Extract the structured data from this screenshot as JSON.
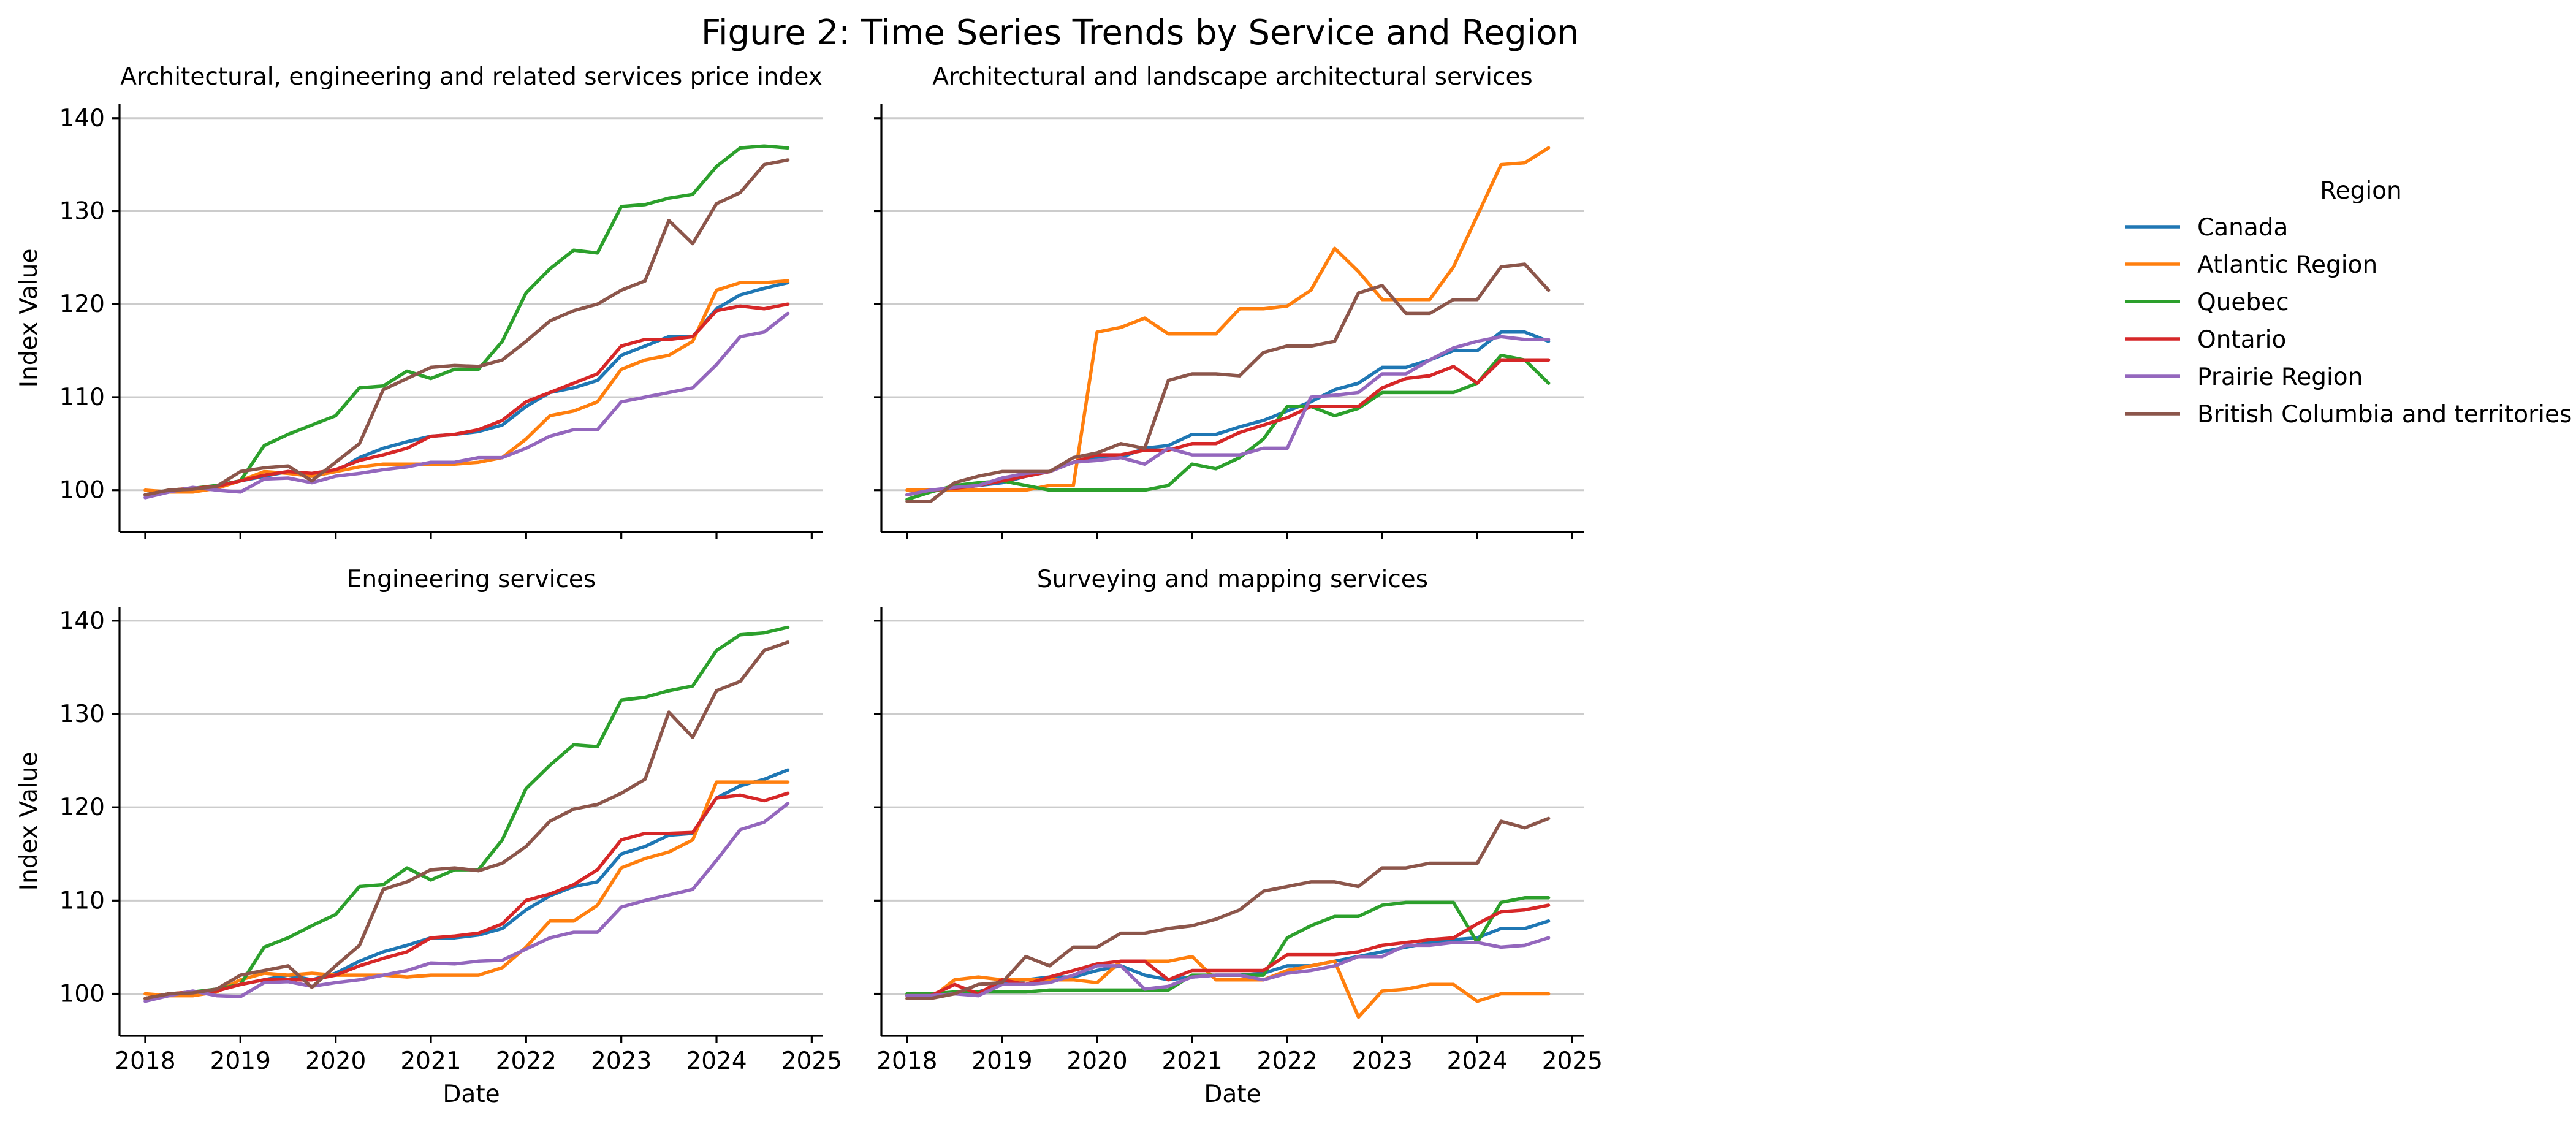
{
  "figure": {
    "title": "Figure 2: Time Series Trends by Service and Region"
  },
  "legend": {
    "title": "Region",
    "entries": [
      {
        "name": "Canada",
        "color": "#1f77b4"
      },
      {
        "name": "Atlantic Region",
        "color": "#ff7f0e"
      },
      {
        "name": "Quebec",
        "color": "#2ca02c"
      },
      {
        "name": "Ontario",
        "color": "#d62728"
      },
      {
        "name": "Prairie Region",
        "color": "#9467bd"
      },
      {
        "name": "British Columbia and territories",
        "color": "#8c564b"
      }
    ]
  },
  "chart_data": [
    {
      "type": "line",
      "title": "Architectural, engineering and related services price index",
      "xlabel": "",
      "ylabel": "Index Value",
      "xticks": [
        "2018",
        "2019",
        "2020",
        "2021",
        "2022",
        "2023",
        "2024",
        "2025"
      ],
      "yticks": [
        100,
        110,
        120,
        130,
        140
      ],
      "xlim": [
        2017.73,
        2025.12
      ],
      "ylim": [
        95.5,
        141.5
      ],
      "grid": "y",
      "x": [
        2018.0,
        2018.25,
        2018.5,
        2018.75,
        2019.0,
        2019.25,
        2019.5,
        2019.75,
        2020.0,
        2020.25,
        2020.5,
        2020.75,
        2021.0,
        2021.25,
        2021.5,
        2021.75,
        2022.0,
        2022.25,
        2022.5,
        2022.75,
        2023.0,
        2023.25,
        2023.5,
        2023.75,
        2024.0,
        2024.25,
        2024.5,
        2024.75
      ],
      "series": [
        {
          "name": "Canada",
          "values": [
            99.5,
            100.0,
            100.1,
            100.5,
            101.0,
            101.5,
            102.0,
            101.5,
            102.0,
            103.5,
            104.5,
            105.2,
            105.8,
            106.0,
            106.3,
            107.0,
            109.0,
            110.5,
            111.0,
            111.8,
            114.5,
            115.5,
            116.5,
            116.5,
            119.5,
            121.0,
            121.7,
            122.3
          ]
        },
        {
          "name": "Atlantic Region",
          "values": [
            100.0,
            99.8,
            99.8,
            100.2,
            101.0,
            102.0,
            101.8,
            101.5,
            102.0,
            102.5,
            102.8,
            102.8,
            102.8,
            102.8,
            103.0,
            103.5,
            105.5,
            108.0,
            108.5,
            109.5,
            113.0,
            114.0,
            114.5,
            116.0,
            121.5,
            122.3,
            122.3,
            122.5
          ]
        },
        {
          "name": "Quebec",
          "values": [
            99.5,
            100.0,
            100.2,
            100.5,
            101.0,
            104.8,
            106.0,
            107.0,
            108.0,
            111.0,
            111.2,
            112.8,
            112.0,
            113.0,
            113.0,
            116.0,
            121.2,
            123.8,
            125.8,
            125.5,
            130.5,
            130.7,
            131.4,
            131.8,
            134.8,
            136.8,
            137.0,
            136.8
          ]
        },
        {
          "name": "Ontario",
          "values": [
            99.5,
            100.0,
            100.2,
            100.4,
            101.0,
            101.6,
            102.0,
            101.8,
            102.2,
            103.2,
            103.8,
            104.5,
            105.8,
            106.0,
            106.5,
            107.5,
            109.5,
            110.5,
            111.5,
            112.5,
            115.5,
            116.2,
            116.2,
            116.5,
            119.3,
            119.8,
            119.5,
            120.0
          ]
        },
        {
          "name": "Prairie Region",
          "values": [
            99.2,
            99.8,
            100.3,
            100.0,
            99.8,
            101.2,
            101.3,
            100.8,
            101.5,
            101.8,
            102.2,
            102.5,
            103.0,
            103.0,
            103.5,
            103.5,
            104.5,
            105.8,
            106.5,
            106.5,
            109.5,
            110.0,
            110.5,
            111.0,
            113.5,
            116.5,
            117.0,
            119.0
          ]
        },
        {
          "name": "British Columbia and territories",
          "values": [
            99.5,
            100.0,
            100.1,
            100.4,
            102.0,
            102.4,
            102.6,
            101.0,
            103.0,
            105.0,
            110.8,
            112.0,
            113.2,
            113.4,
            113.3,
            114.0,
            116.0,
            118.2,
            119.3,
            120.0,
            121.5,
            122.5,
            129.0,
            126.5,
            130.8,
            132.0,
            135.0,
            135.5
          ]
        }
      ]
    },
    {
      "type": "line",
      "title": "Architectural and landscape architectural services",
      "xlabel": "",
      "ylabel": "",
      "xticks": [
        "2018",
        "2019",
        "2020",
        "2021",
        "2022",
        "2023",
        "2024",
        "2025"
      ],
      "yticks": [
        100,
        110,
        120,
        130,
        140
      ],
      "xlim": [
        2017.73,
        2025.12
      ],
      "ylim": [
        95.5,
        141.5
      ],
      "grid": "y",
      "x": [
        2018.0,
        2018.25,
        2018.5,
        2018.75,
        2019.0,
        2019.25,
        2019.5,
        2019.75,
        2020.0,
        2020.25,
        2020.5,
        2020.75,
        2021.0,
        2021.25,
        2021.5,
        2021.75,
        2022.0,
        2022.25,
        2022.5,
        2022.75,
        2023.0,
        2023.25,
        2023.5,
        2023.75,
        2024.0,
        2024.25,
        2024.5,
        2024.75
      ],
      "series": [
        {
          "name": "Canada",
          "values": [
            99.5,
            100.0,
            100.2,
            100.5,
            100.8,
            101.5,
            102.0,
            103.0,
            103.5,
            103.5,
            104.5,
            104.8,
            106.0,
            106.0,
            106.8,
            107.5,
            108.5,
            109.5,
            110.8,
            111.5,
            113.2,
            113.2,
            114.0,
            115.0,
            115.0,
            117.0,
            117.0,
            116.0
          ]
        },
        {
          "name": "Atlantic Region",
          "values": [
            100.0,
            100.0,
            100.0,
            100.0,
            100.0,
            100.0,
            100.5,
            100.5,
            117.0,
            117.5,
            118.5,
            116.8,
            116.8,
            116.8,
            119.5,
            119.5,
            119.8,
            121.5,
            126.0,
            123.5,
            120.5,
            120.5,
            120.5,
            124.0,
            129.5,
            135.0,
            135.2,
            136.8
          ]
        },
        {
          "name": "Quebec",
          "values": [
            99.0,
            99.8,
            100.5,
            100.8,
            101.0,
            100.5,
            100.0,
            100.0,
            100.0,
            100.0,
            100.0,
            100.5,
            102.8,
            102.3,
            103.5,
            105.5,
            109.0,
            109.0,
            108.0,
            108.8,
            110.5,
            110.5,
            110.5,
            110.5,
            111.5,
            114.5,
            114.0,
            111.5
          ]
        },
        {
          "name": "Ontario",
          "values": [
            99.5,
            100.0,
            100.2,
            100.5,
            101.0,
            101.5,
            102.0,
            103.0,
            103.8,
            103.8,
            104.3,
            104.3,
            105.0,
            105.0,
            106.2,
            107.0,
            107.8,
            109.0,
            109.0,
            109.0,
            111.0,
            112.0,
            112.3,
            113.3,
            111.5,
            114.0,
            114.0,
            114.0
          ]
        },
        {
          "name": "Prairie Region",
          "values": [
            99.5,
            100.0,
            100.3,
            100.5,
            101.3,
            101.8,
            102.0,
            103.0,
            103.2,
            103.5,
            102.8,
            104.5,
            103.8,
            103.8,
            103.8,
            104.5,
            104.5,
            110.0,
            110.2,
            110.5,
            112.5,
            112.5,
            114.0,
            115.3,
            116.0,
            116.5,
            116.2,
            116.2
          ]
        },
        {
          "name": "British Columbia and territories",
          "values": [
            98.8,
            98.8,
            100.8,
            101.5,
            102.0,
            102.0,
            102.0,
            103.5,
            104.0,
            105.0,
            104.5,
            111.8,
            112.5,
            112.5,
            112.3,
            114.8,
            115.5,
            115.5,
            116.0,
            121.2,
            122.0,
            119.0,
            119.0,
            120.5,
            120.5,
            124.0,
            124.3,
            121.5
          ]
        }
      ]
    },
    {
      "type": "line",
      "title": "Engineering services",
      "xlabel": "Date",
      "ylabel": "Index Value",
      "xticks": [
        "2018",
        "2019",
        "2020",
        "2021",
        "2022",
        "2023",
        "2024",
        "2025"
      ],
      "yticks": [
        100,
        110,
        120,
        130,
        140
      ],
      "xlim": [
        2017.73,
        2025.12
      ],
      "ylim": [
        95.5,
        141.5
      ],
      "grid": "y",
      "x": [
        2018.0,
        2018.25,
        2018.5,
        2018.75,
        2019.0,
        2019.25,
        2019.5,
        2019.75,
        2020.0,
        2020.25,
        2020.5,
        2020.75,
        2021.0,
        2021.25,
        2021.5,
        2021.75,
        2022.0,
        2022.25,
        2022.5,
        2022.75,
        2023.0,
        2023.25,
        2023.5,
        2023.75,
        2024.0,
        2024.25,
        2024.5,
        2024.75
      ],
      "series": [
        {
          "name": "Canada",
          "values": [
            99.5,
            100.0,
            100.1,
            100.5,
            101.0,
            101.5,
            102.0,
            101.5,
            102.2,
            103.5,
            104.5,
            105.2,
            106.0,
            106.0,
            106.3,
            107.0,
            109.0,
            110.5,
            111.5,
            112.0,
            115.0,
            115.8,
            117.0,
            117.2,
            121.0,
            122.3,
            123.0,
            124.0
          ]
        },
        {
          "name": "Atlantic Region",
          "values": [
            100.0,
            99.8,
            99.8,
            100.2,
            101.5,
            102.2,
            102.0,
            102.2,
            102.0,
            102.0,
            102.0,
            101.8,
            102.0,
            102.0,
            102.0,
            102.8,
            105.0,
            107.8,
            107.8,
            109.5,
            113.5,
            114.5,
            115.2,
            116.5,
            122.7,
            122.7,
            122.7,
            122.7
          ]
        },
        {
          "name": "Quebec",
          "values": [
            99.5,
            100.0,
            100.2,
            100.5,
            101.0,
            105.0,
            106.0,
            107.3,
            108.5,
            111.5,
            111.7,
            113.5,
            112.2,
            113.3,
            113.3,
            116.5,
            122.0,
            124.5,
            126.7,
            126.5,
            131.5,
            131.8,
            132.5,
            133.0,
            136.8,
            138.5,
            138.7,
            139.3
          ]
        },
        {
          "name": "Ontario",
          "values": [
            99.5,
            100.0,
            100.2,
            100.3,
            101.0,
            101.5,
            101.5,
            101.5,
            102.0,
            103.0,
            103.8,
            104.5,
            106.0,
            106.2,
            106.5,
            107.5,
            110.0,
            110.7,
            111.7,
            113.3,
            116.5,
            117.2,
            117.2,
            117.3,
            121.0,
            121.3,
            120.7,
            121.5
          ]
        },
        {
          "name": "Prairie Region",
          "values": [
            99.2,
            99.8,
            100.3,
            99.8,
            99.7,
            101.2,
            101.3,
            100.8,
            101.2,
            101.5,
            102.0,
            102.5,
            103.3,
            103.2,
            103.5,
            103.6,
            104.8,
            106.0,
            106.6,
            106.6,
            109.3,
            110.0,
            110.6,
            111.2,
            114.3,
            117.6,
            118.4,
            120.4
          ]
        },
        {
          "name": "British Columbia and territories",
          "values": [
            99.5,
            100.0,
            100.1,
            100.5,
            102.0,
            102.5,
            103.0,
            100.7,
            103.0,
            105.2,
            111.2,
            112.0,
            113.3,
            113.5,
            113.2,
            114.0,
            115.8,
            118.5,
            119.8,
            120.3,
            121.5,
            123.0,
            130.2,
            127.5,
            132.5,
            133.5,
            136.8,
            137.7
          ]
        }
      ]
    },
    {
      "type": "line",
      "title": "Surveying and mapping services",
      "xlabel": "Date",
      "ylabel": "",
      "xticks": [
        "2018",
        "2019",
        "2020",
        "2021",
        "2022",
        "2023",
        "2024",
        "2025"
      ],
      "yticks": [
        100,
        110,
        120,
        130,
        140
      ],
      "xlim": [
        2017.73,
        2025.12
      ],
      "ylim": [
        95.5,
        141.5
      ],
      "grid": "y",
      "x": [
        2018.0,
        2018.25,
        2018.5,
        2018.75,
        2019.0,
        2019.25,
        2019.5,
        2019.75,
        2020.0,
        2020.25,
        2020.5,
        2020.75,
        2021.0,
        2021.25,
        2021.5,
        2021.75,
        2022.0,
        2022.25,
        2022.5,
        2022.75,
        2023.0,
        2023.25,
        2023.5,
        2023.75,
        2024.0,
        2024.25,
        2024.5,
        2024.75
      ],
      "series": [
        {
          "name": "Canada",
          "values": [
            99.8,
            99.8,
            100.0,
            100.2,
            101.0,
            101.5,
            101.8,
            101.8,
            102.5,
            103.0,
            102.0,
            101.5,
            101.8,
            102.0,
            102.0,
            102.2,
            103.0,
            103.0,
            103.5,
            104.0,
            104.5,
            105.0,
            105.5,
            105.8,
            106.0,
            107.0,
            107.0,
            107.8
          ]
        },
        {
          "name": "Atlantic Region",
          "values": [
            99.5,
            99.5,
            101.5,
            101.8,
            101.5,
            101.5,
            101.5,
            101.5,
            101.2,
            103.5,
            103.5,
            103.5,
            104.0,
            101.5,
            101.5,
            101.5,
            102.5,
            103.0,
            103.5,
            97.5,
            100.3,
            100.5,
            101.0,
            101.0,
            99.2,
            100.0,
            100.0,
            100.0
          ]
        },
        {
          "name": "Quebec",
          "values": [
            100.0,
            100.0,
            100.2,
            100.2,
            100.2,
            100.2,
            100.4,
            100.4,
            100.4,
            100.4,
            100.4,
            100.4,
            102.0,
            102.0,
            102.0,
            102.0,
            106.0,
            107.3,
            108.3,
            108.3,
            109.5,
            109.8,
            109.8,
            109.8,
            105.5,
            109.8,
            110.3,
            110.3
          ]
        },
        {
          "name": "Ontario",
          "values": [
            99.8,
            99.8,
            101.0,
            100.0,
            101.5,
            101.0,
            101.8,
            102.5,
            103.2,
            103.5,
            103.5,
            101.5,
            102.5,
            102.5,
            102.5,
            102.5,
            104.2,
            104.2,
            104.2,
            104.5,
            105.2,
            105.5,
            105.8,
            106.0,
            107.5,
            108.8,
            109.0,
            109.5
          ]
        },
        {
          "name": "Prairie Region",
          "values": [
            99.8,
            99.8,
            100.0,
            99.8,
            101.0,
            101.0,
            101.2,
            102.0,
            103.0,
            103.0,
            100.5,
            100.8,
            101.8,
            102.0,
            102.0,
            101.5,
            102.2,
            102.5,
            103.0,
            104.0,
            104.0,
            105.2,
            105.2,
            105.5,
            105.5,
            105.0,
            105.2,
            106.0
          ]
        },
        {
          "name": "British Columbia and territories",
          "values": [
            99.5,
            99.5,
            100.0,
            101.0,
            101.2,
            104.0,
            103.0,
            105.0,
            105.0,
            106.5,
            106.5,
            107.0,
            107.3,
            108.0,
            109.0,
            111.0,
            111.5,
            112.0,
            112.0,
            111.5,
            113.5,
            113.5,
            114.0,
            114.0,
            114.0,
            118.5,
            117.8,
            118.8
          ]
        }
      ]
    }
  ]
}
